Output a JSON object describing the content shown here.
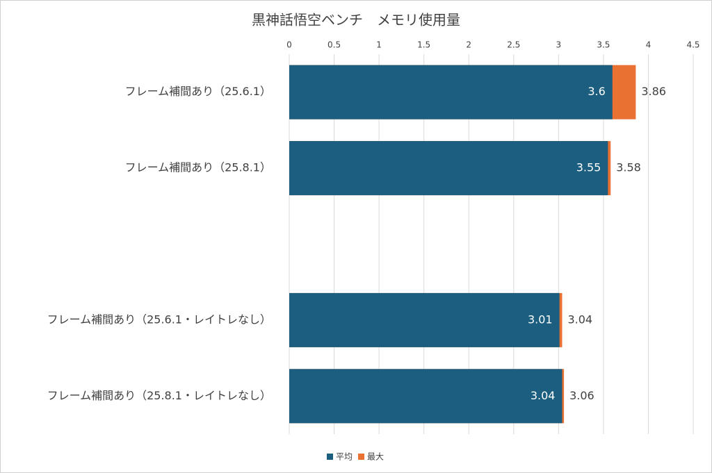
{
  "chart_data": {
    "type": "bar",
    "orientation": "horizontal",
    "overlap": true,
    "title": "黒神話悟空ベンチ　メモリ使用量",
    "categories": [
      "フレーム補間あり（25.6.1）",
      "フレーム補間あり（25.8.1）",
      null,
      "フレーム補間あり（25.6.1・レイトレなし）",
      "フレーム補間あり（25.8.1・レイトレなし）"
    ],
    "series": [
      {
        "name": "平均",
        "color": "#1b5e80",
        "values": [
          3.6,
          3.55,
          null,
          3.01,
          3.04
        ]
      },
      {
        "name": "最大",
        "color": "#e97132",
        "values": [
          3.86,
          3.58,
          null,
          3.04,
          3.06
        ]
      }
    ],
    "xlim": [
      0,
      4.5
    ],
    "xticks": [
      0,
      0.5,
      1,
      1.5,
      2,
      2.5,
      3,
      3.5,
      4,
      4.5
    ],
    "grid": true,
    "legend": "bottom"
  }
}
